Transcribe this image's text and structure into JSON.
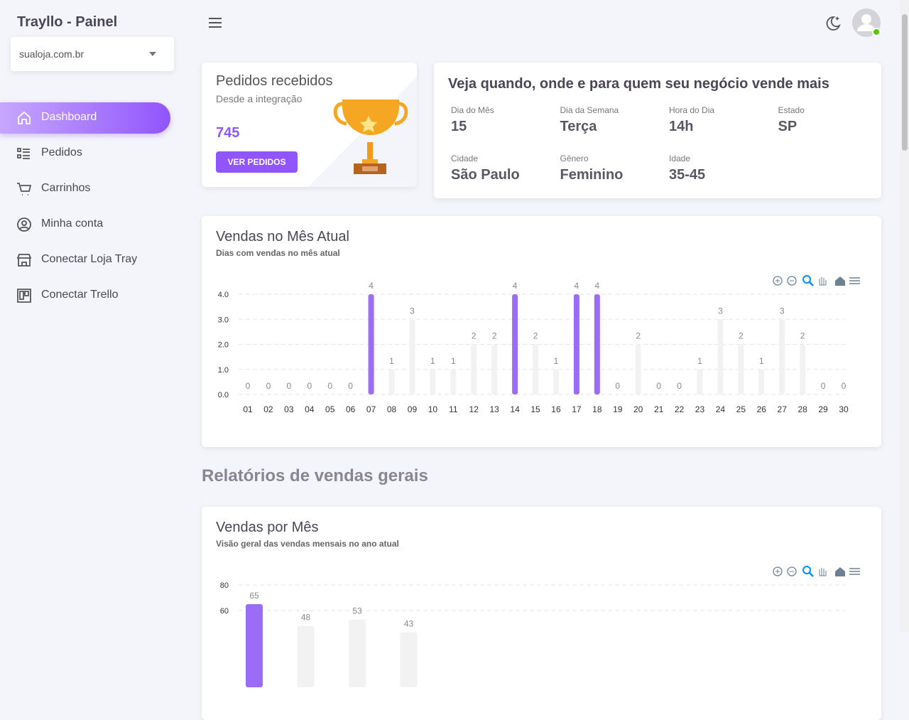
{
  "sidebar": {
    "title": "Trayllo - Painel",
    "store": "sualoja.com.br",
    "menu": [
      "Dashboard",
      "Pedidos",
      "Carrinhos",
      "Minha conta",
      "Conectar Loja Tray",
      "Conectar Trello"
    ]
  },
  "orders_card": {
    "title": "Pedidos recebidos",
    "subtitle": "Desde a integração",
    "count": 745,
    "button": "VER PEDIDOS"
  },
  "insights": {
    "title": "Veja quando, onde e para quem seu negócio vende mais",
    "items": [
      {
        "label": "Dia do Mês",
        "value": "15"
      },
      {
        "label": "Dia da Semana",
        "value": "Terça"
      },
      {
        "label": "Hora do Dia",
        "value": "14h"
      },
      {
        "label": "Estado",
        "value": "SP"
      },
      {
        "label": "Cidade",
        "value": "São Paulo"
      },
      {
        "label": "Gênero",
        "value": "Feminino"
      },
      {
        "label": "Idade",
        "value": "35-45"
      }
    ]
  },
  "daily_chart": {
    "type": "bar",
    "title": "Vendas no Mês Atual",
    "subtitle": "Dias com vendas no mês atual",
    "categories": [
      "01",
      "02",
      "03",
      "04",
      "05",
      "06",
      "07",
      "08",
      "09",
      "10",
      "11",
      "12",
      "13",
      "14",
      "15",
      "16",
      "17",
      "18",
      "19",
      "20",
      "21",
      "22",
      "23",
      "24",
      "25",
      "26",
      "27",
      "28",
      "29",
      "30"
    ],
    "values": [
      0,
      0,
      0,
      0,
      0,
      0,
      4,
      1,
      3,
      1,
      1,
      2,
      2,
      4,
      2,
      1,
      4,
      4,
      0,
      2,
      0,
      0,
      1,
      3,
      2,
      1,
      3,
      2,
      0,
      0
    ],
    "colors": [
      "#f2f2f2",
      "#f2f2f2",
      "#f2f2f2",
      "#f2f2f2",
      "#f2f2f2",
      "#f2f2f2",
      "#9b6cf6",
      "#f2f2f2",
      "#f2f2f2",
      "#f2f2f2",
      "#f2f2f2",
      "#f2f2f2",
      "#f2f2f2",
      "#9b6cf6",
      "#f2f2f2",
      "#f2f2f2",
      "#9b6cf6",
      "#9b6cf6",
      "#f2f2f2",
      "#f2f2f2",
      "#f2f2f2",
      "#f2f2f2",
      "#f2f2f2",
      "#f2f2f2",
      "#f2f2f2",
      "#f2f2f2",
      "#f2f2f2",
      "#f2f2f2",
      "#f2f2f2",
      "#f2f2f2"
    ],
    "ylim": [
      0,
      4
    ],
    "yticks": [
      {
        "value": 0,
        "label": "0.0"
      },
      {
        "value": 1,
        "label": "1.0"
      },
      {
        "value": 2,
        "label": "2.0"
      },
      {
        "value": 3,
        "label": "3.0"
      },
      {
        "value": 4,
        "label": "4.0"
      }
    ],
    "grid": true
  },
  "section_title": "Relatórios de vendas gerais",
  "monthly_chart": {
    "type": "bar",
    "title": "Vendas por Mês",
    "subtitle": "Visão geral das vendas mensais no ano atual",
    "categories": [
      null,
      null,
      null,
      null
    ],
    "values": [
      65,
      48,
      53,
      43
    ],
    "colors": [
      "#9b6cf6",
      "#f2f2f2",
      "#f2f2f2",
      "#f2f2f2"
    ],
    "ylim": [
      0,
      80
    ],
    "yticks": [
      60,
      80
    ],
    "grid": true
  }
}
